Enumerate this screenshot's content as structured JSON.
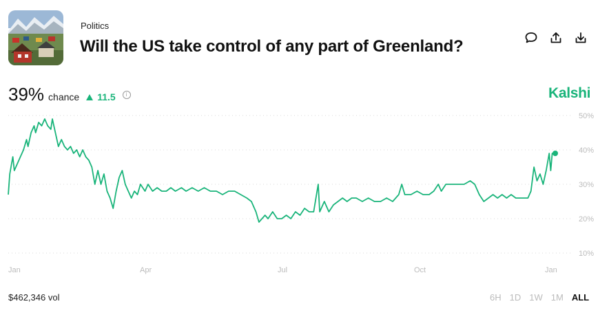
{
  "header": {
    "category": "Politics",
    "title": "Will the US take control of any part of Greenland?",
    "actions": [
      {
        "icon": "comment-icon"
      },
      {
        "icon": "share-icon"
      },
      {
        "icon": "download-icon"
      }
    ]
  },
  "stats": {
    "percent": "39%",
    "chance_label": "chance",
    "delta": "11.5",
    "delta_direction": "up",
    "info_icon": "info-icon"
  },
  "brand": "Kalshi",
  "footer": {
    "volume": "$462,346 vol",
    "ranges": [
      "6H",
      "1D",
      "1W",
      "1M",
      "ALL"
    ],
    "active_range": "ALL"
  },
  "colors": {
    "accent": "#19b47a",
    "grid": "#d8d8d8",
    "muted": "#bbbbbb"
  },
  "chart_data": {
    "type": "line",
    "title": "",
    "xlabel": "",
    "ylabel": "",
    "x_ticks": [
      "Jan",
      "Apr",
      "Jul",
      "Oct",
      "Jan"
    ],
    "y_ticks": [
      "50%",
      "40%",
      "30%",
      "20%",
      "10%"
    ],
    "ylim": [
      10,
      50
    ],
    "grid": "horizontal dotted",
    "series": [
      {
        "values": [
          [
            "2025-01-01",
            27
          ],
          [
            "2025-01-02",
            33
          ],
          [
            "2025-01-04",
            38
          ],
          [
            "2025-01-05",
            34
          ],
          [
            "2025-01-07",
            36
          ],
          [
            "2025-01-09",
            38
          ],
          [
            "2025-01-11",
            40
          ],
          [
            "2025-01-13",
            43
          ],
          [
            "2025-01-14",
            41
          ],
          [
            "2025-01-16",
            45
          ],
          [
            "2025-01-18",
            47
          ],
          [
            "2025-01-19",
            45
          ],
          [
            "2025-01-21",
            48
          ],
          [
            "2025-01-23",
            47
          ],
          [
            "2025-01-25",
            49
          ],
          [
            "2025-01-27",
            47
          ],
          [
            "2025-01-29",
            46
          ],
          [
            "2025-01-30",
            49
          ],
          [
            "2025-02-01",
            45
          ],
          [
            "2025-02-03",
            41
          ],
          [
            "2025-02-05",
            43
          ],
          [
            "2025-02-07",
            41
          ],
          [
            "2025-02-09",
            40
          ],
          [
            "2025-02-11",
            41
          ],
          [
            "2025-02-13",
            39
          ],
          [
            "2025-02-15",
            40
          ],
          [
            "2025-02-17",
            38
          ],
          [
            "2025-02-19",
            40
          ],
          [
            "2025-02-21",
            38
          ],
          [
            "2025-02-23",
            37
          ],
          [
            "2025-02-25",
            35
          ],
          [
            "2025-02-27",
            30
          ],
          [
            "2025-03-01",
            34
          ],
          [
            "2025-03-03",
            30
          ],
          [
            "2025-03-05",
            33
          ],
          [
            "2025-03-07",
            28
          ],
          [
            "2025-03-09",
            26
          ],
          [
            "2025-03-11",
            23
          ],
          [
            "2025-03-13",
            28
          ],
          [
            "2025-03-15",
            32
          ],
          [
            "2025-03-17",
            34
          ],
          [
            "2025-03-19",
            30
          ],
          [
            "2025-03-21",
            28
          ],
          [
            "2025-03-23",
            26
          ],
          [
            "2025-03-25",
            28
          ],
          [
            "2025-03-27",
            27
          ],
          [
            "2025-03-29",
            30
          ],
          [
            "2025-04-01",
            28
          ],
          [
            "2025-04-03",
            30
          ],
          [
            "2025-04-06",
            28
          ],
          [
            "2025-04-09",
            29
          ],
          [
            "2025-04-12",
            28
          ],
          [
            "2025-04-15",
            28
          ],
          [
            "2025-04-18",
            29
          ],
          [
            "2025-04-21",
            28
          ],
          [
            "2025-04-25",
            29
          ],
          [
            "2025-04-28",
            28
          ],
          [
            "2025-05-02",
            29
          ],
          [
            "2025-05-06",
            28
          ],
          [
            "2025-05-10",
            29
          ],
          [
            "2025-05-14",
            28
          ],
          [
            "2025-05-18",
            28
          ],
          [
            "2025-05-22",
            27
          ],
          [
            "2025-05-26",
            28
          ],
          [
            "2025-05-30",
            28
          ],
          [
            "2025-06-03",
            27
          ],
          [
            "2025-06-07",
            26
          ],
          [
            "2025-06-10",
            25
          ],
          [
            "2025-06-13",
            22
          ],
          [
            "2025-06-15",
            19
          ],
          [
            "2025-06-17",
            20
          ],
          [
            "2025-06-19",
            21
          ],
          [
            "2025-06-21",
            20
          ],
          [
            "2025-06-24",
            22
          ],
          [
            "2025-06-27",
            20
          ],
          [
            "2025-06-30",
            20
          ],
          [
            "2025-07-03",
            21
          ],
          [
            "2025-07-06",
            20
          ],
          [
            "2025-07-09",
            22
          ],
          [
            "2025-07-12",
            21
          ],
          [
            "2025-07-15",
            23
          ],
          [
            "2025-07-18",
            22
          ],
          [
            "2025-07-21",
            22
          ],
          [
            "2025-07-24",
            30
          ],
          [
            "2025-07-25",
            22
          ],
          [
            "2025-07-28",
            25
          ],
          [
            "2025-07-31",
            22
          ],
          [
            "2025-08-03",
            24
          ],
          [
            "2025-08-06",
            25
          ],
          [
            "2025-08-09",
            26
          ],
          [
            "2025-08-12",
            25
          ],
          [
            "2025-08-15",
            26
          ],
          [
            "2025-08-18",
            26
          ],
          [
            "2025-08-22",
            25
          ],
          [
            "2025-08-26",
            26
          ],
          [
            "2025-08-30",
            25
          ],
          [
            "2025-09-03",
            25
          ],
          [
            "2025-09-07",
            26
          ],
          [
            "2025-09-11",
            25
          ],
          [
            "2025-09-15",
            27
          ],
          [
            "2025-09-17",
            30
          ],
          [
            "2025-09-19",
            27
          ],
          [
            "2025-09-23",
            27
          ],
          [
            "2025-09-27",
            28
          ],
          [
            "2025-10-01",
            27
          ],
          [
            "2025-10-05",
            27
          ],
          [
            "2025-10-08",
            28
          ],
          [
            "2025-10-11",
            30
          ],
          [
            "2025-10-13",
            28
          ],
          [
            "2025-10-16",
            30
          ],
          [
            "2025-10-20",
            30
          ],
          [
            "2025-10-24",
            30
          ],
          [
            "2025-10-28",
            30
          ],
          [
            "2025-11-01",
            31
          ],
          [
            "2025-11-04",
            30
          ],
          [
            "2025-11-07",
            27
          ],
          [
            "2025-11-10",
            25
          ],
          [
            "2025-11-13",
            26
          ],
          [
            "2025-11-16",
            27
          ],
          [
            "2025-11-19",
            26
          ],
          [
            "2025-11-22",
            27
          ],
          [
            "2025-11-25",
            26
          ],
          [
            "2025-11-28",
            27
          ],
          [
            "2025-12-01",
            26
          ],
          [
            "2025-12-05",
            26
          ],
          [
            "2025-12-09",
            26
          ],
          [
            "2025-12-11",
            28
          ],
          [
            "2025-12-13",
            35
          ],
          [
            "2025-12-15",
            31
          ],
          [
            "2025-12-17",
            33
          ],
          [
            "2025-12-19",
            30
          ],
          [
            "2025-12-21",
            34
          ],
          [
            "2025-12-23",
            39
          ],
          [
            "2025-12-24",
            34
          ],
          [
            "2025-12-25",
            39
          ],
          [
            "2025-12-27",
            39
          ]
        ]
      }
    ]
  }
}
